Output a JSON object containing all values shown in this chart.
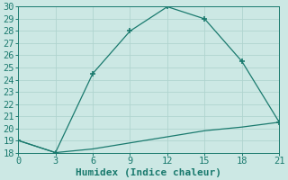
{
  "line1_x": [
    0,
    3,
    6,
    9,
    12,
    15,
    18,
    21
  ],
  "line1_y": [
    19,
    18,
    24.5,
    28,
    30,
    29,
    25.5,
    20.5
  ],
  "line2_x": [
    0,
    3,
    6,
    9,
    12,
    15,
    18,
    21
  ],
  "line2_y": [
    19,
    18,
    18.3,
    18.8,
    19.3,
    19.8,
    20.1,
    20.5
  ],
  "line_color": "#1a7a6e",
  "bg_color": "#cce8e4",
  "grid_color": "#b0d4cf",
  "xlabel": "Humidex (Indice chaleur)",
  "xlim": [
    0,
    21
  ],
  "ylim": [
    18,
    30
  ],
  "xticks": [
    0,
    3,
    6,
    9,
    12,
    15,
    18,
    21
  ],
  "yticks": [
    18,
    19,
    20,
    21,
    22,
    23,
    24,
    25,
    26,
    27,
    28,
    29,
    30
  ],
  "tick_fontsize": 7.5,
  "label_fontsize": 8
}
